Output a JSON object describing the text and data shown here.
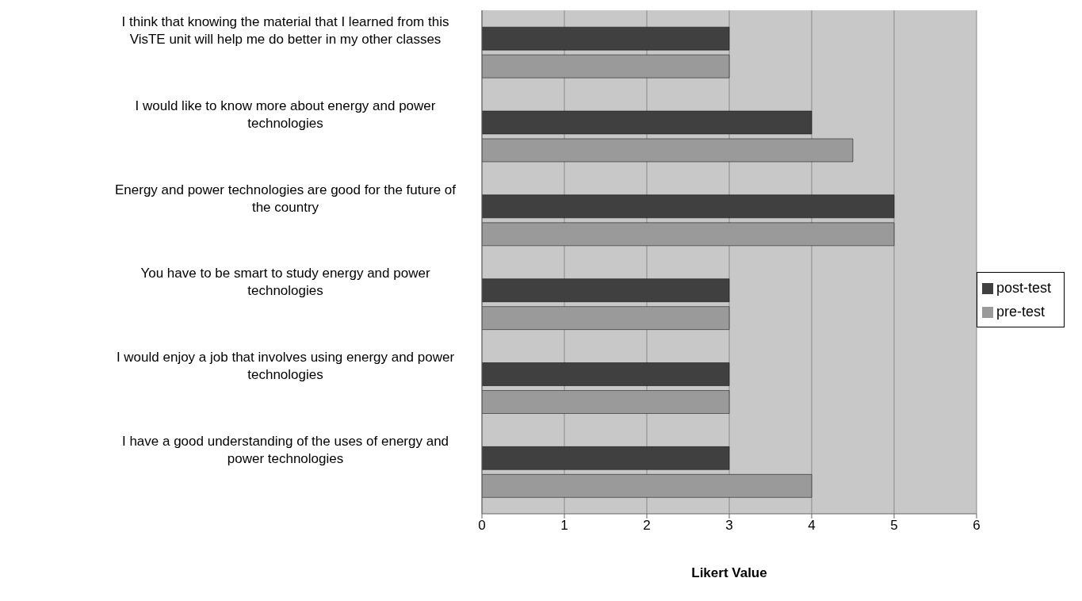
{
  "chart_data": {
    "type": "bar",
    "orientation": "horizontal",
    "xlabel": "Likert Value",
    "categories": [
      "I think that knowing the material that I learned from this VisTE unit will help me do better in my other classes",
      "I would like to know more about energy and power technologies",
      "Energy and power technologies are good for the future of the country",
      "You have to be smart to study energy and power technologies",
      "I would enjoy a job that involves using energy and power technologies",
      "I have a good understanding of the uses of energy and power technologies"
    ],
    "series": [
      {
        "name": "post-test",
        "color": "#404040",
        "values": [
          3,
          4,
          5,
          3,
          3,
          3
        ]
      },
      {
        "name": "pre-test",
        "color": "#9a9a9a",
        "values": [
          3,
          4.5,
          5,
          3,
          3,
          4
        ]
      }
    ],
    "xlim": [
      0,
      6
    ],
    "xticks": [
      0,
      1,
      2,
      3,
      4,
      5,
      6
    ],
    "grid": "x",
    "legend": "right"
  }
}
